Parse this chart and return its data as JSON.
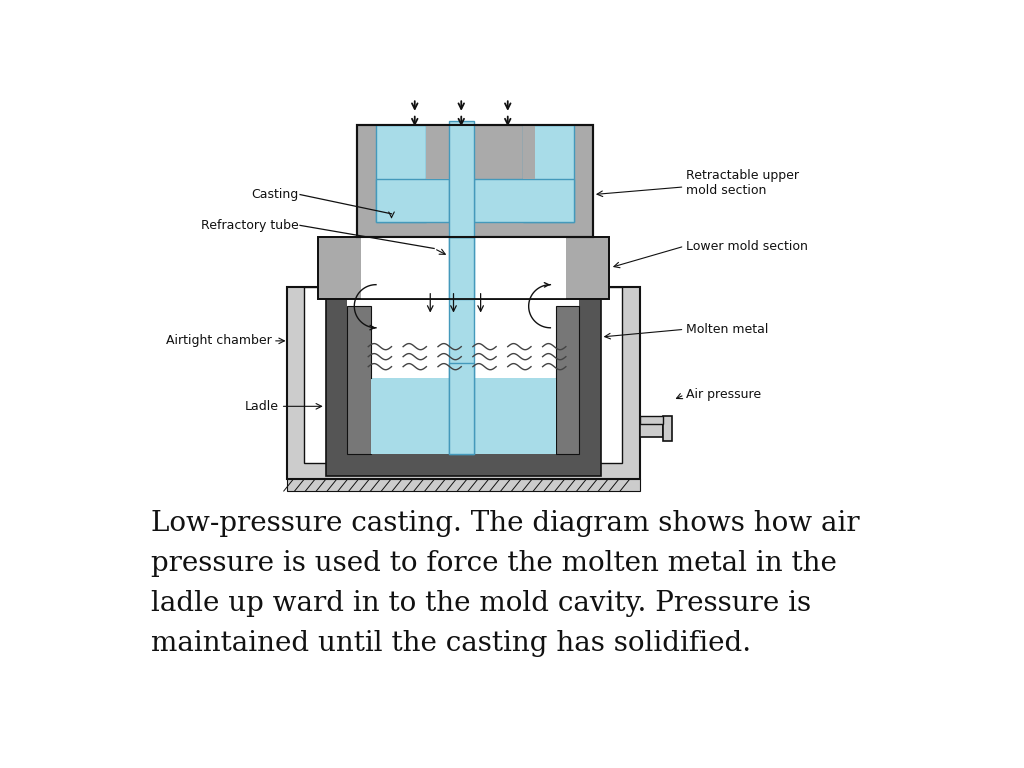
{
  "bg_color": "#ffffff",
  "gray_dark": "#888888",
  "gray_med": "#aaaaaa",
  "gray_light": "#cccccc",
  "gray_wall": "#666666",
  "blue": "#a8dce8",
  "blue_stroke": "#4499bb",
  "black": "#111111",
  "white": "#ffffff",
  "caption_text_line1": "Low-pressure casting. The diagram shows how air",
  "caption_text_line2": "pressure is used to force the molten metal in the",
  "caption_text_line3": "ladle up ward in to the mold cavity. Pressure is",
  "caption_text_line4": "maintained until the casting has solidified.",
  "label_casting": "Casting",
  "label_refractory": "Refractory tube",
  "label_airtight": "Airtight chamber",
  "label_ladle": "Ladle",
  "label_retractable": "Retractable upper\nmold section",
  "label_lower_mold": "Lower mold section",
  "label_molten": "Molten metal",
  "label_air": "Air pressure"
}
